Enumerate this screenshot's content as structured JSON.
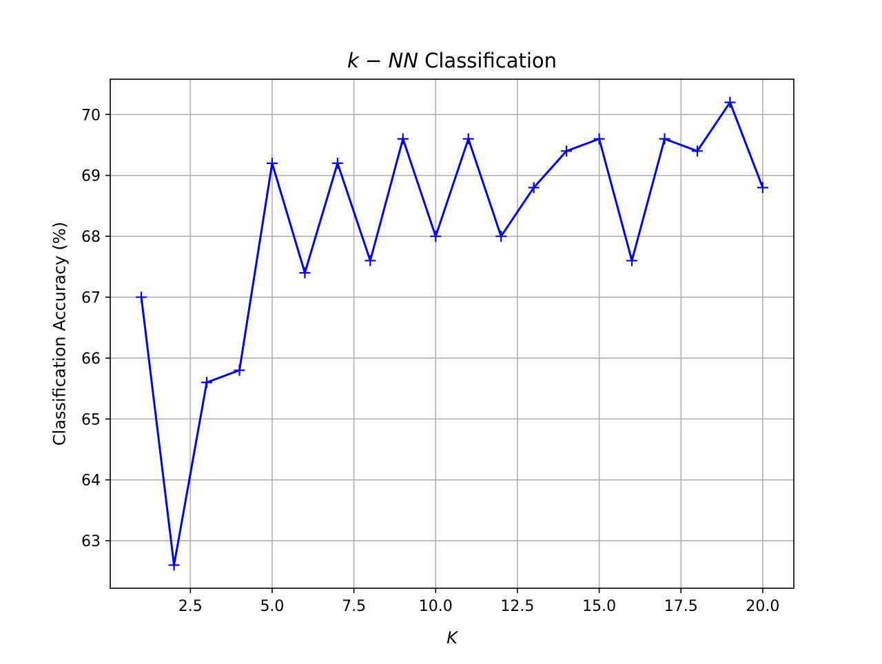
{
  "chart_data": {
    "type": "line",
    "title": {
      "prefix": "k",
      "operator": "−",
      "var": "NN",
      "rest": " Classification"
    },
    "xlabel": "K",
    "ylabel": "Classification Accuracy (%)",
    "xlim": [
      0.05,
      20.95
    ],
    "ylim": [
      62.22,
      70.58
    ],
    "xticks": [
      2.5,
      5.0,
      7.5,
      10.0,
      12.5,
      15.0,
      17.5,
      20.0
    ],
    "xtick_labels": [
      "2.5",
      "5.0",
      "7.5",
      "10.0",
      "12.5",
      "15.0",
      "17.5",
      "20.0"
    ],
    "yticks": [
      63,
      64,
      65,
      66,
      67,
      68,
      69,
      70
    ],
    "ytick_labels": [
      "63",
      "64",
      "65",
      "66",
      "67",
      "68",
      "69",
      "70"
    ],
    "grid": true,
    "series": [
      {
        "color": "#0000ff",
        "marker": "+",
        "x": [
          1,
          2,
          3,
          4,
          5,
          6,
          7,
          8,
          9,
          10,
          11,
          12,
          13,
          14,
          15,
          16,
          17,
          18,
          19,
          20
        ],
        "y": [
          67.0,
          62.6,
          65.6,
          65.8,
          69.2,
          67.4,
          69.2,
          67.6,
          69.6,
          68.0,
          69.6,
          68.0,
          68.8,
          69.4,
          69.6,
          67.6,
          69.6,
          69.4,
          70.2,
          68.8
        ]
      }
    ]
  }
}
